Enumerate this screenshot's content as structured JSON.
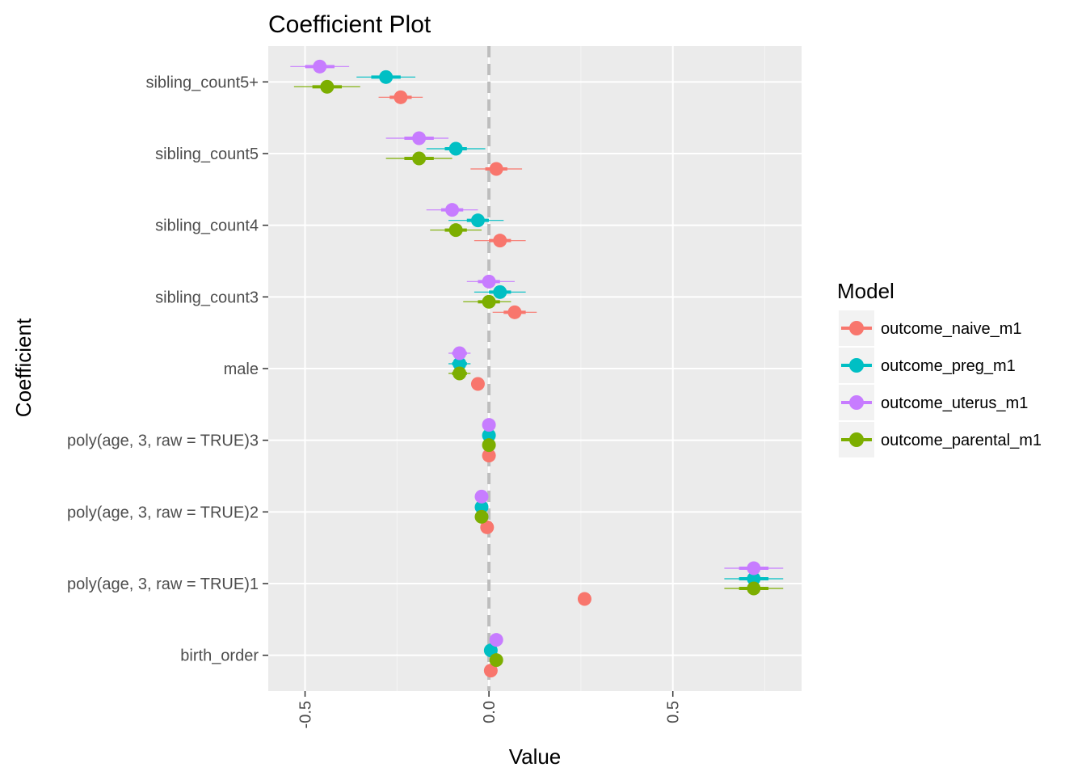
{
  "chart_data": {
    "type": "scatter",
    "title": "Coefficient Plot",
    "xlabel": "Value",
    "ylabel": "Coefficient",
    "xlim": [
      -0.6,
      0.85
    ],
    "x_ticks": [
      {
        "value": -0.5,
        "label": "-0.5"
      },
      {
        "value": 0.0,
        "label": "0.0"
      },
      {
        "value": 0.5,
        "label": "0.5"
      }
    ],
    "grid": true,
    "background": "#ebebeb",
    "reference_line": {
      "x": 0,
      "style": "dashed",
      "color": "#bdbdbd"
    },
    "categories": [
      "sibling_count5+",
      "sibling_count5",
      "sibling_count4",
      "sibling_count3",
      "male",
      "poly(age, 3, raw = TRUE)3",
      "poly(age, 3, raw = TRUE)2",
      "poly(age, 3, raw = TRUE)1",
      "birth_order"
    ],
    "legend": {
      "title": "Model",
      "position": "right"
    },
    "series": [
      {
        "name": "outcome_naive_m1",
        "color": "#f8766d",
        "estimates": [
          -0.24,
          0.02,
          0.03,
          0.07,
          -0.03,
          0.0,
          -0.005,
          0.26,
          0.005
        ],
        "inner_low": [
          -0.27,
          -0.01,
          0.0,
          0.04,
          -0.04,
          -0.005,
          -0.01,
          0.255,
          0.0
        ],
        "inner_high": [
          -0.21,
          0.05,
          0.06,
          0.1,
          -0.02,
          0.005,
          0.0,
          0.265,
          0.01
        ],
        "outer_low": [
          -0.3,
          -0.05,
          -0.04,
          0.01,
          -0.045,
          -0.01,
          -0.015,
          0.245,
          -0.005
        ],
        "outer_high": [
          -0.18,
          0.09,
          0.1,
          0.13,
          -0.015,
          0.01,
          0.005,
          0.275,
          0.015
        ]
      },
      {
        "name": "outcome_preg_m1",
        "color": "#00bfc4",
        "estimates": [
          -0.28,
          -0.09,
          -0.03,
          0.03,
          -0.08,
          0.0,
          -0.02,
          0.72,
          0.005
        ],
        "inner_low": [
          -0.32,
          -0.12,
          -0.06,
          0.0,
          -0.1,
          -0.005,
          -0.03,
          0.68,
          0.0
        ],
        "inner_high": [
          -0.24,
          -0.06,
          0.0,
          0.06,
          -0.06,
          0.005,
          -0.01,
          0.76,
          0.01
        ],
        "outer_low": [
          -0.36,
          -0.17,
          -0.11,
          -0.04,
          -0.11,
          -0.01,
          -0.035,
          0.64,
          -0.005
        ],
        "outer_high": [
          -0.2,
          -0.01,
          0.04,
          0.1,
          -0.05,
          0.01,
          -0.005,
          0.8,
          0.015
        ]
      },
      {
        "name": "outcome_uterus_m1",
        "color": "#c77cff",
        "estimates": [
          -0.46,
          -0.19,
          -0.1,
          0.0,
          -0.08,
          0.0,
          -0.02,
          0.72,
          0.02
        ],
        "inner_low": [
          -0.5,
          -0.23,
          -0.13,
          -0.03,
          -0.1,
          -0.005,
          -0.03,
          0.68,
          0.015
        ],
        "inner_high": [
          -0.42,
          -0.15,
          -0.07,
          0.03,
          -0.06,
          0.005,
          -0.01,
          0.76,
          0.025
        ],
        "outer_low": [
          -0.54,
          -0.28,
          -0.17,
          -0.06,
          -0.11,
          -0.01,
          -0.035,
          0.64,
          0.01
        ],
        "outer_high": [
          -0.38,
          -0.11,
          -0.03,
          0.07,
          -0.05,
          0.01,
          -0.005,
          0.8,
          0.03
        ]
      },
      {
        "name": "outcome_parental_m1",
        "color": "#7cae00",
        "estimates": [
          -0.44,
          -0.19,
          -0.09,
          0.0,
          -0.08,
          0.0,
          -0.02,
          0.72,
          0.02
        ],
        "inner_low": [
          -0.48,
          -0.23,
          -0.12,
          -0.03,
          -0.1,
          -0.005,
          -0.03,
          0.68,
          0.015
        ],
        "inner_high": [
          -0.4,
          -0.15,
          -0.06,
          0.03,
          -0.06,
          0.005,
          -0.01,
          0.76,
          0.025
        ],
        "outer_low": [
          -0.53,
          -0.28,
          -0.16,
          -0.07,
          -0.11,
          -0.01,
          -0.035,
          0.64,
          0.01
        ],
        "outer_high": [
          -0.35,
          -0.1,
          -0.02,
          0.06,
          -0.05,
          0.01,
          -0.005,
          0.8,
          0.03
        ]
      }
    ]
  }
}
